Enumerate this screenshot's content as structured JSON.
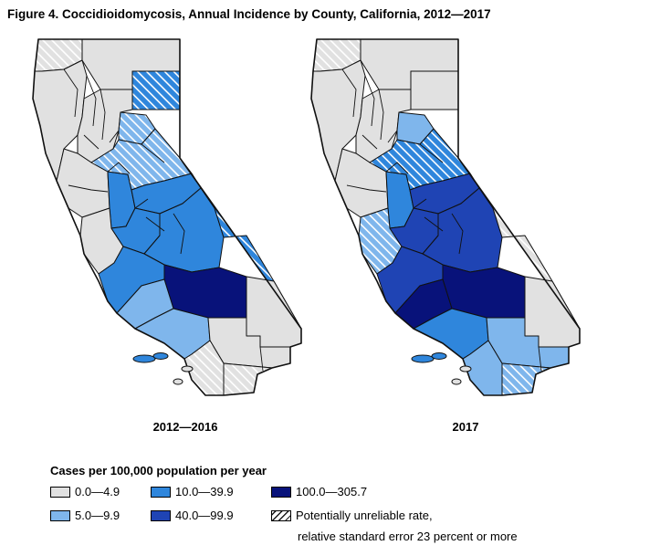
{
  "title": "Figure 4. Coccidioidomycosis, Annual Incidence by County, California, 2012—2017",
  "colors": {
    "c0": "#e1e1e1",
    "c1": "#7fb6ec",
    "c2": "#2f86dc",
    "c3": "#1f44b4",
    "c4": "#08127a",
    "hatch": "#c8c8c8",
    "outline": "#111111"
  },
  "maps": [
    {
      "caption": "2012—2016",
      "regions": {
        "far-north-west": "c0h",
        "north-coast": "c0",
        "modoc-lassen": "c0",
        "lassen-east": "c2h",
        "sacramento-valley": "c0",
        "plumas-sierra": "c1h",
        "bay-area": "c0",
        "delta": "c2",
        "gold-country": "c1h",
        "central-sierra": "c2",
        "monterey-coast": "c0",
        "san-joaquin-valley": "c2",
        "fresno-tulare": "c2",
        "inyo-mono": "c2h",
        "slo-coast": "c2",
        "kern": "c4",
        "santa-barbara": "c1",
        "ventura-la": "c1",
        "san-bernardino": "c0",
        "riverside": "c0",
        "san-diego": "c0h",
        "imperial": "c0h",
        "channel-islands": "c2"
      }
    },
    {
      "caption": "2017",
      "regions": {
        "far-north-west": "c0h",
        "north-coast": "c0",
        "modoc-lassen": "c0",
        "lassen-east": "c0",
        "sacramento-valley": "c0",
        "plumas-sierra": "c1",
        "bay-area": "c0",
        "delta": "c2",
        "gold-country": "c2h",
        "central-sierra": "c3",
        "monterey-coast": "c1h",
        "san-joaquin-valley": "c3",
        "fresno-tulare": "c3",
        "inyo-mono": "c0h",
        "slo-coast": "c3",
        "kern": "c4",
        "santa-barbara": "c4",
        "ventura-la": "c2",
        "san-bernardino": "c0",
        "riverside": "c1",
        "san-diego": "c1",
        "imperial": "c1h",
        "channel-islands": "c2"
      }
    }
  ],
  "legend": {
    "title": "Cases per 100,000 population per year",
    "items": [
      {
        "label": "0.0—4.9",
        "color": "c0"
      },
      {
        "label": "10.0—39.9",
        "color": "c2"
      },
      {
        "label": "100.0—305.7",
        "color": "c4"
      },
      {
        "label": "5.0—9.9",
        "color": "c1"
      },
      {
        "label": "40.0—99.9",
        "color": "c3"
      },
      {
        "label": "Potentially unreliable rate,",
        "color": "hatch"
      }
    ],
    "note_line2": "relative standard error 23 percent or more"
  }
}
